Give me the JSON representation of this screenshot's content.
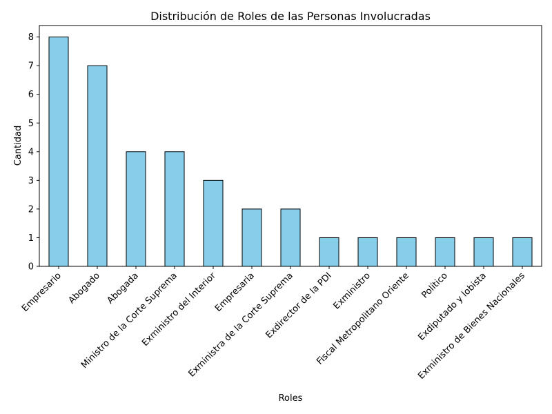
{
  "chart_data": {
    "type": "bar",
    "title": "Distribución de Roles de las Personas Involucradas",
    "xlabel": "Roles",
    "ylabel": "Cantidad",
    "categories": [
      "Empresario",
      "Abogado",
      "Abogada",
      "Ministro de la Corte Suprema",
      "Exministro del Interior",
      "Empresaria",
      "Exministra de la Corte Suprema",
      "Exdirector de la PDI",
      "Exministro",
      "Fiscal Metropolitano Oriente",
      "Político",
      "Exdiputado y lobista",
      "Exministro de Bienes Nacionales"
    ],
    "values": [
      8,
      7,
      4,
      4,
      3,
      2,
      2,
      1,
      1,
      1,
      1,
      1,
      1
    ],
    "y_ticks": [
      0,
      1,
      2,
      3,
      4,
      5,
      6,
      7,
      8
    ],
    "ylim": [
      0,
      8.4
    ],
    "grid": false,
    "legend": "none",
    "bar_color": "#87ceeb",
    "edge_color": "#000000"
  }
}
